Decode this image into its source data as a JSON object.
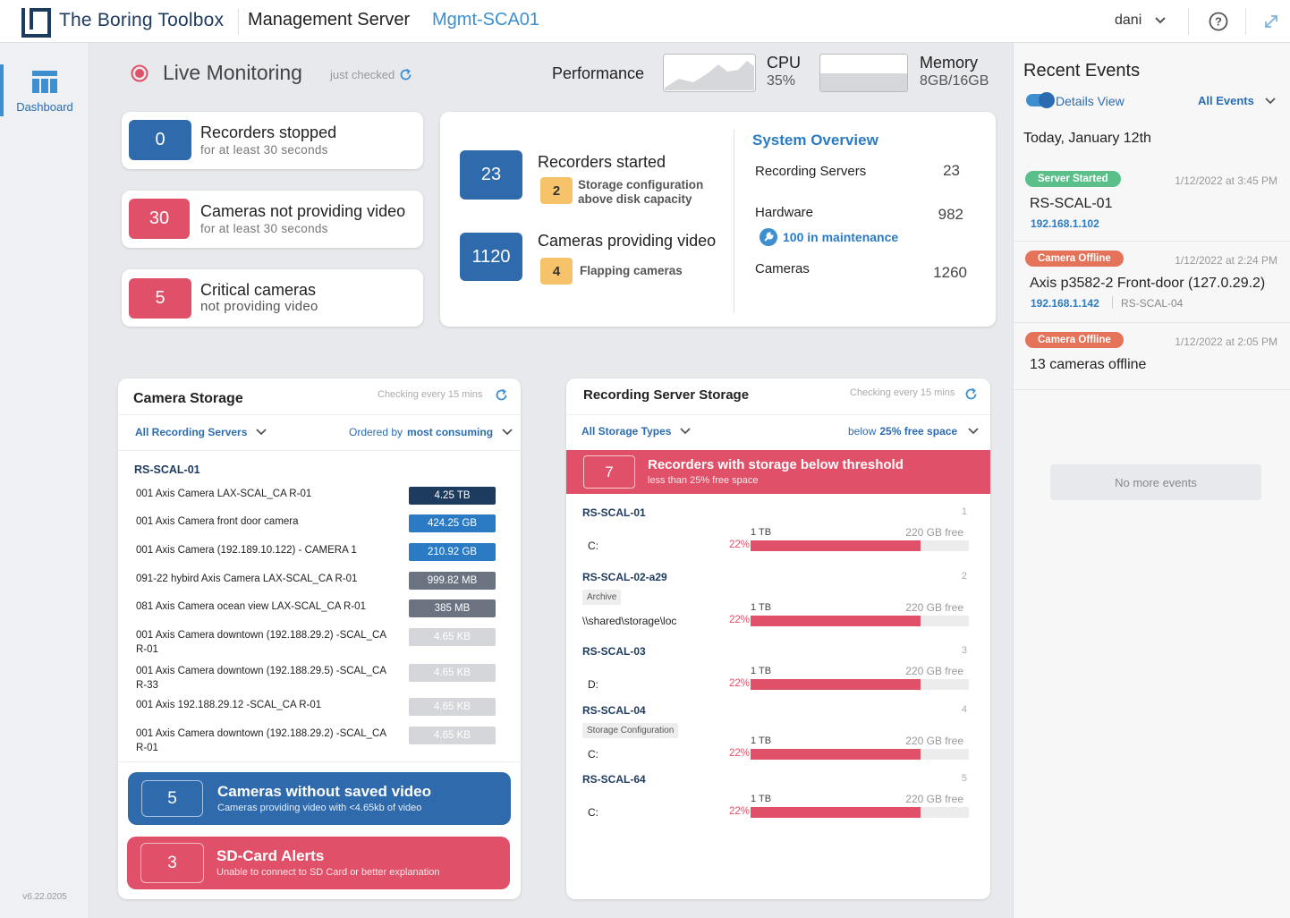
{
  "header": {
    "brand": "The Boring Toolbox",
    "title": "Management Server",
    "server": "Mgmt-SCA01",
    "user": "dani"
  },
  "nav": {
    "dashboard_label": "Dashboard",
    "version": "v6.22.0205"
  },
  "monitoring": {
    "title": "Live Monitoring",
    "status": "just checked",
    "performance_label": "Performance",
    "cpu_label": "CPU",
    "cpu_value": "35%",
    "memory_label": "Memory",
    "memory_value": "8GB/16GB",
    "memory_used_fraction": 0.5
  },
  "kpis": {
    "recorders_stopped": {
      "value": "0",
      "title": "Recorders stopped",
      "sub": "for at least 30 seconds"
    },
    "cameras_not_providing": {
      "value": "30",
      "title": "Cameras not providing video",
      "sub": "for at least 30 seconds"
    },
    "critical_cameras": {
      "value": "5",
      "title": "Critical cameras",
      "sub": "not providing video"
    }
  },
  "status": {
    "recorders_started": {
      "value": "23",
      "title": "Recorders started",
      "sub_value": "2",
      "sub_text_1": "Storage configuration",
      "sub_text_2": "above disk capacity"
    },
    "cameras_providing": {
      "value": "1120",
      "title": "Cameras providing video",
      "sub_value": "4",
      "sub_text": "Flapping cameras"
    }
  },
  "system_overview": {
    "title": "System Overview",
    "recording_servers_label": "Recording Servers",
    "recording_servers_value": "23",
    "hardware_label": "Hardware",
    "hardware_value": "982",
    "maintenance": "100 in maintenance",
    "cameras_label": "Cameras",
    "cameras_value": "1260"
  },
  "camera_storage": {
    "title": "Camera Storage",
    "checking": "Checking every 15 mins",
    "filter": "All Recording Servers",
    "order_prefix": "Ordered by",
    "order_value": "most consuming",
    "server": "RS-SCAL-01",
    "rows": [
      {
        "name": "001 Axis Camera LAX-SCAL_CA R-01",
        "value": "4.25 TB",
        "color": "#1d3a5f"
      },
      {
        "name": "001 Axis Camera front door camera",
        "value": "424.25 GB",
        "color": "#2b7bc4"
      },
      {
        "name": "001 Axis Camera (192.189.10.122) - CAMERA 1",
        "value": "210.92 GB",
        "color": "#2b7bc4"
      },
      {
        "name": "091-22 hybird Axis Camera LAX-SCAL_CA R-01",
        "value": "999.82 MB",
        "color": "#6b7280"
      },
      {
        "name": "081 Axis Camera ocean view LAX-SCAL_CA R-01",
        "value": "385 MB",
        "color": "#6b7280"
      },
      {
        "name": "001 Axis Camera downtown (192.188.29.2) -SCAL_CA R-01",
        "value": "4.65 KB",
        "color": "#d4d6da"
      },
      {
        "name": "001 Axis Camera downtown (192.188.29.5) -SCAL_CA R-33",
        "value": "4.65 KB",
        "color": "#d4d6da"
      },
      {
        "name": "001 Axis 192.188.29.12 -SCAL_CA R-01",
        "value": "4.65 KB",
        "color": "#d4d6da"
      },
      {
        "name": "001 Axis Camera downtown (192.188.29.2) -SCAL_CA R-01",
        "value": "4.65 KB",
        "color": "#d4d6da"
      }
    ],
    "no_saved_video": {
      "value": "5",
      "title": "Cameras without saved video",
      "sub": "Cameras providing video with <4.65kb of video"
    },
    "sd_card": {
      "value": "3",
      "title": "SD-Card Alerts",
      "sub": "Unable to connect to SD Card or better explanation"
    }
  },
  "recording_storage": {
    "title": "Recording Server Storage",
    "checking": "Checking every 15 mins",
    "filter": "All Storage Types",
    "threshold_prefix": "below",
    "threshold_value": "25% free space",
    "alert": {
      "value": "7",
      "title": "Recorders with storage below threshold",
      "sub": "less than 25% free space"
    },
    "servers": [
      {
        "name": "RS-SCAL-01",
        "index": "1",
        "tag": "",
        "drive": "C:",
        "size": "1 TB",
        "free": "220 GB free",
        "percent": "22%",
        "used_fraction": 0.78
      },
      {
        "name": "RS-SCAL-02-a29",
        "index": "2",
        "tag": "Archive",
        "drive": "\\\\shared\\storage\\loc",
        "size": "1 TB",
        "free": "220 GB free",
        "percent": "22%",
        "used_fraction": 0.78
      },
      {
        "name": "RS-SCAL-03",
        "index": "3",
        "tag": "",
        "drive": "D:",
        "size": "1 TB",
        "free": "220 GB free",
        "percent": "22%",
        "used_fraction": 0.78
      },
      {
        "name": "RS-SCAL-04",
        "index": "4",
        "tag": "Storage Configuration",
        "drive": "C:",
        "size": "1 TB",
        "free": "220 GB free",
        "percent": "22%",
        "used_fraction": 0.78
      },
      {
        "name": "RS-SCAL-64",
        "index": "5",
        "tag": "",
        "drive": "C:",
        "size": "1 TB",
        "free": "220 GB free",
        "percent": "22%",
        "used_fraction": 0.78
      }
    ]
  },
  "events": {
    "title": "Recent Events",
    "details_view": "Details View",
    "filter": "All Events",
    "date": "Today, January 12th",
    "items": [
      {
        "badge": "Server Started",
        "badge_color": "#5bbf8a",
        "time": "1/12/2022 at 3:45 PM",
        "title": "RS-SCAL-01",
        "ip": "192.168.1.102",
        "extra": ""
      },
      {
        "badge": "Camera Offline",
        "badge_color": "#e5735a",
        "time": "1/12/2022 at 2:24 PM",
        "title": "Axis p3582-2 Front-door (127.0.29.2)",
        "ip": "192.168.1.142",
        "extra": "RS-SCAL-04"
      },
      {
        "badge": "Camera Offline",
        "badge_color": "#e5735a",
        "time": "1/12/2022 at 2:05 PM",
        "title": "13 cameras offline",
        "ip": "",
        "extra": ""
      }
    ],
    "no_more": "No more events"
  }
}
